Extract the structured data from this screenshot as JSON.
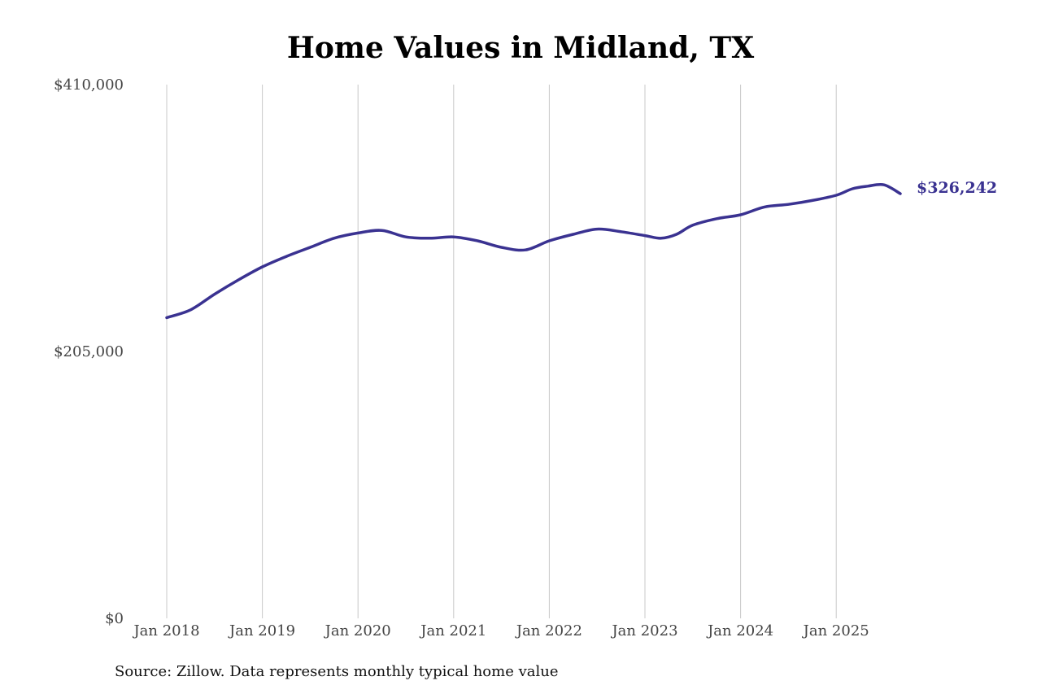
{
  "chart_data": {
    "type": "line",
    "title": "Home Values in Midland, TX",
    "xlabel": "",
    "ylabel": "",
    "ylim": [
      0,
      410000
    ],
    "yticks": [
      {
        "value": 0,
        "label": "$0"
      },
      {
        "value": 205000,
        "label": "$205,000"
      },
      {
        "value": 410000,
        "label": "$410,000"
      }
    ],
    "xticks": [
      {
        "value": 2018.0,
        "label": "Jan 2018"
      },
      {
        "value": 2019.0,
        "label": "Jan 2019"
      },
      {
        "value": 2020.0,
        "label": "Jan 2020"
      },
      {
        "value": 2021.0,
        "label": "Jan 2021"
      },
      {
        "value": 2022.0,
        "label": "Jan 2022"
      },
      {
        "value": 2023.0,
        "label": "Jan 2023"
      },
      {
        "value": 2024.0,
        "label": "Jan 2024"
      },
      {
        "value": 2025.0,
        "label": "Jan 2025"
      }
    ],
    "xlim": [
      2017.83,
      2025.9
    ],
    "grid": "vertical",
    "legend": "none",
    "series": [
      {
        "color": "#3a3291",
        "x": [
          2018.0,
          2018.25,
          2018.5,
          2018.75,
          2019.0,
          2019.25,
          2019.5,
          2019.75,
          2020.0,
          2020.25,
          2020.5,
          2020.75,
          2021.0,
          2021.25,
          2021.5,
          2021.75,
          2022.0,
          2022.25,
          2022.5,
          2022.75,
          2023.0,
          2023.17,
          2023.33,
          2023.5,
          2023.75,
          2024.0,
          2024.25,
          2024.5,
          2024.75,
          2025.0,
          2025.17,
          2025.33,
          2025.5,
          2025.67
        ],
        "y": [
          231000,
          237000,
          249000,
          260000,
          270000,
          278000,
          285000,
          292000,
          296000,
          298000,
          293000,
          292000,
          293000,
          290000,
          285000,
          283000,
          290000,
          295000,
          299000,
          297000,
          294000,
          292000,
          295000,
          302000,
          307000,
          310000,
          316000,
          318000,
          321000,
          325000,
          330000,
          332000,
          333000,
          326242
        ]
      }
    ],
    "end_label": "$326,242"
  },
  "source_note": "Source: Zillow. Data represents monthly typical home value"
}
